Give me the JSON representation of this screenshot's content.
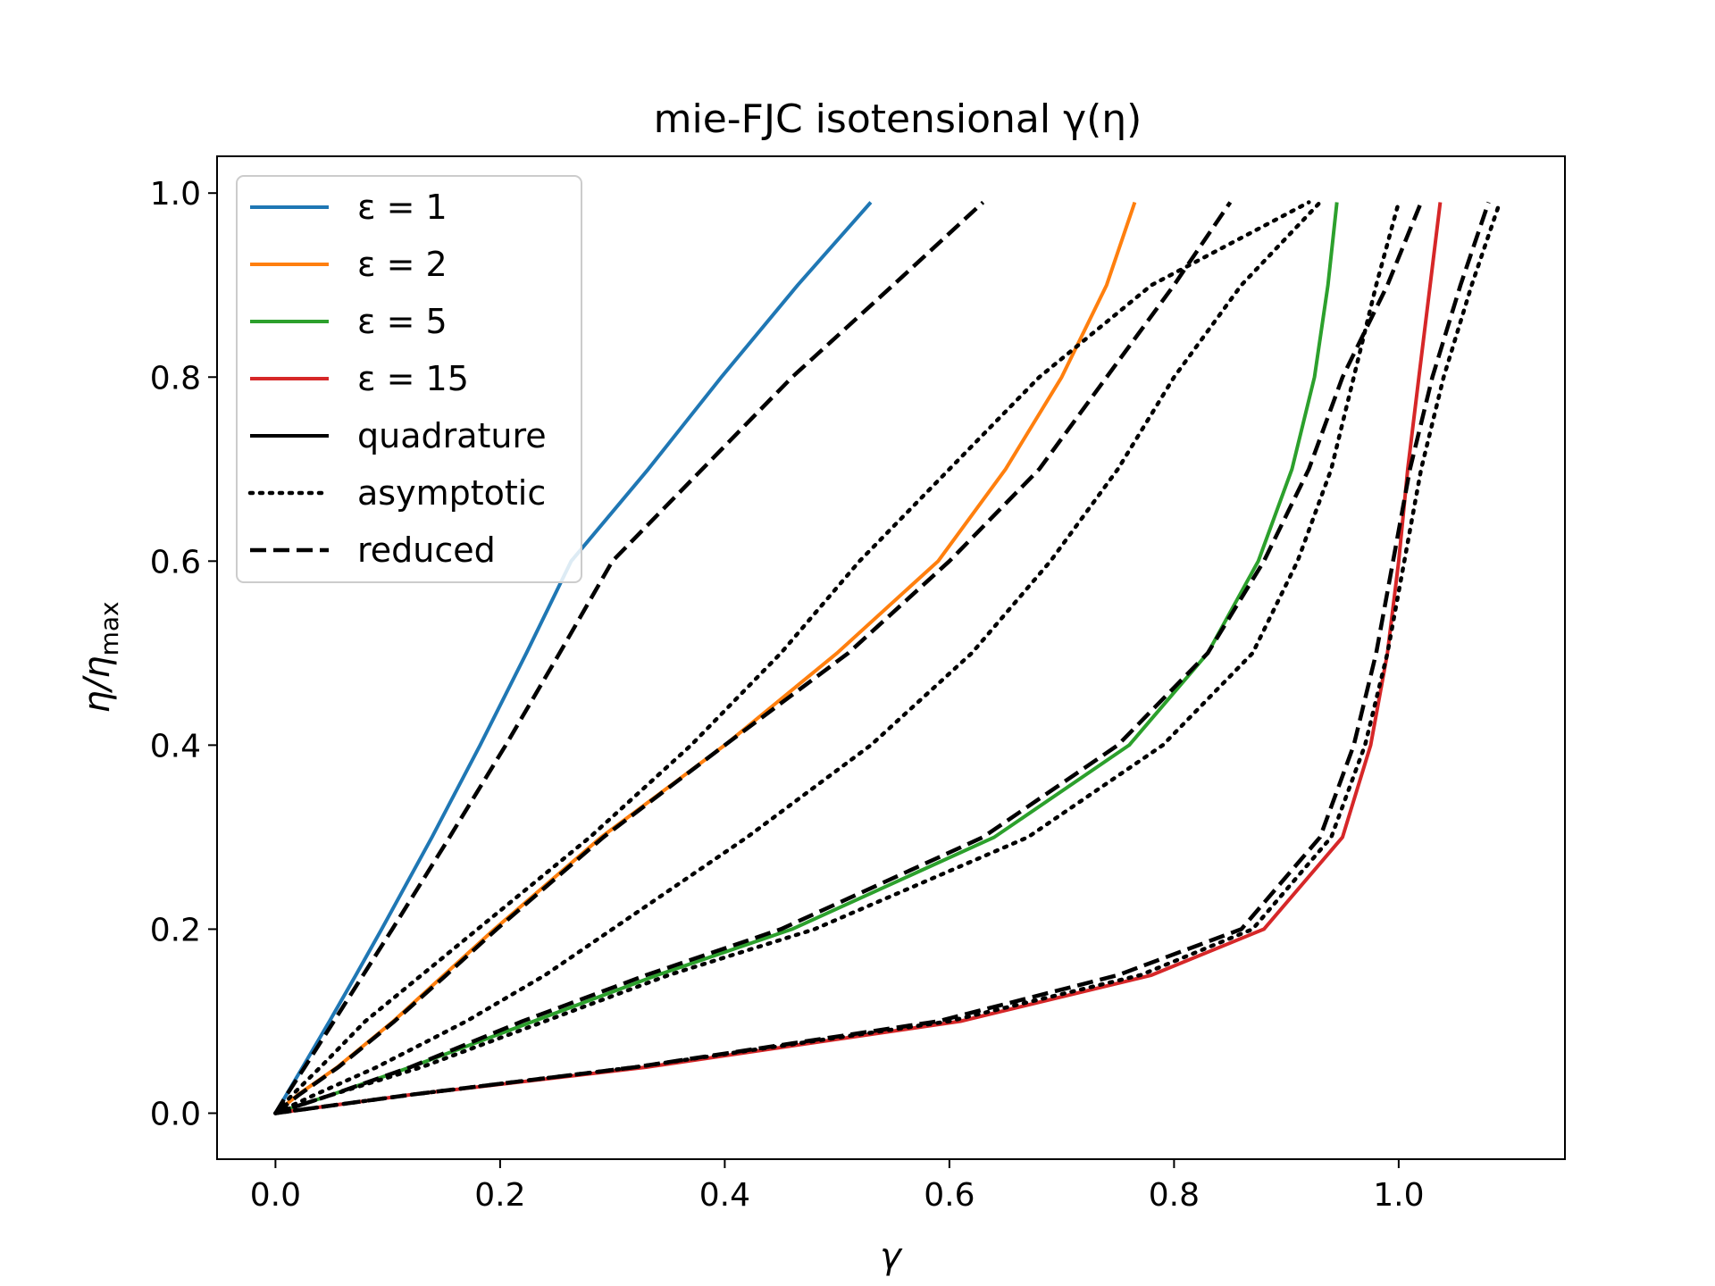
{
  "chart_data": {
    "type": "line",
    "title": "mie-FJC isotensional γ(η)",
    "xlabel": "γ",
    "ylabel": "η/η",
    "ylabel_sub": "max",
    "xlim": [
      -0.052,
      1.148
    ],
    "ylim": [
      -0.05,
      1.04
    ],
    "xticks": [
      "0.0",
      "0.2",
      "0.4",
      "0.6",
      "0.8",
      "1.0"
    ],
    "xtick_values": [
      0.0,
      0.2,
      0.4,
      0.6,
      0.8,
      1.0
    ],
    "yticks": [
      "0.0",
      "0.2",
      "0.4",
      "0.6",
      "0.8",
      "1.0"
    ],
    "ytick_values": [
      0.0,
      0.2,
      0.4,
      0.6,
      0.8,
      1.0
    ],
    "grid": false,
    "legend_position": "upper-left",
    "colors": {
      "eps1": "#1f77b4",
      "eps2": "#ff7f0e",
      "eps5": "#2ca02c",
      "eps15": "#d62728",
      "black": "#000000"
    },
    "legend": [
      {
        "label": "ε = 1",
        "color": "#1f77b4",
        "style": "solid"
      },
      {
        "label": "ε = 2",
        "color": "#ff7f0e",
        "style": "solid"
      },
      {
        "label": "ε = 5",
        "color": "#2ca02c",
        "style": "solid"
      },
      {
        "label": "ε = 15",
        "color": "#d62728",
        "style": "solid"
      },
      {
        "label": "quadrature",
        "color": "#000000",
        "style": "solid"
      },
      {
        "label": "asymptotic",
        "color": "#000000",
        "style": "dotted"
      },
      {
        "label": "reduced",
        "color": "#000000",
        "style": "dashed"
      }
    ],
    "y": [
      0.0,
      0.02,
      0.05,
      0.1,
      0.15,
      0.2,
      0.3,
      0.4,
      0.5,
      0.6,
      0.7,
      0.8,
      0.9,
      0.99
    ],
    "series": [
      {
        "group": "eps1",
        "method": "quadrature",
        "color": "#1f77b4",
        "style": "solid",
        "x": [
          0.0,
          0.0097,
          0.0242,
          0.0481,
          0.0716,
          0.0946,
          0.1393,
          0.1822,
          0.2234,
          0.2633,
          0.3319,
          0.397,
          0.465,
          0.53
        ]
      },
      {
        "group": "eps1",
        "method": "asymptotic",
        "color": "#000000",
        "style": "dotted",
        "x": [
          0.0,
          0.015,
          0.04,
          0.08,
          0.13,
          0.18,
          0.28,
          0.37,
          0.45,
          0.52,
          0.6,
          0.68,
          0.78,
          0.92
        ]
      },
      {
        "group": "eps1",
        "method": "reduced",
        "color": "#000000",
        "style": "dashed",
        "x": [
          0.0,
          0.01,
          0.026,
          0.052,
          0.078,
          0.104,
          0.155,
          0.205,
          0.253,
          0.3,
          0.38,
          0.46,
          0.55,
          0.63
        ]
      },
      {
        "group": "eps2",
        "method": "quadrature",
        "color": "#ff7f0e",
        "style": "solid",
        "x": [
          0.0,
          0.02,
          0.055,
          0.105,
          0.15,
          0.195,
          0.29,
          0.4,
          0.5,
          0.59,
          0.65,
          0.7,
          0.74,
          0.765
        ]
      },
      {
        "group": "eps2",
        "method": "asymptotic",
        "color": "#000000",
        "style": "dotted",
        "x": [
          0.0,
          0.035,
          0.09,
          0.17,
          0.24,
          0.3,
          0.42,
          0.53,
          0.62,
          0.69,
          0.75,
          0.8,
          0.86,
          0.93
        ]
      },
      {
        "group": "eps2",
        "method": "reduced",
        "color": "#000000",
        "style": "dashed",
        "x": [
          0.0,
          0.021,
          0.056,
          0.106,
          0.152,
          0.197,
          0.292,
          0.4,
          0.51,
          0.6,
          0.68,
          0.74,
          0.8,
          0.85
        ]
      },
      {
        "group": "eps5",
        "method": "quadrature",
        "color": "#2ca02c",
        "style": "solid",
        "x": [
          0.0,
          0.05,
          0.12,
          0.23,
          0.34,
          0.46,
          0.64,
          0.76,
          0.83,
          0.875,
          0.905,
          0.925,
          0.937,
          0.945
        ]
      },
      {
        "group": "eps5",
        "method": "asymptotic",
        "color": "#000000",
        "style": "dotted",
        "x": [
          0.0,
          0.05,
          0.13,
          0.24,
          0.35,
          0.48,
          0.67,
          0.79,
          0.87,
          0.91,
          0.94,
          0.96,
          0.98,
          1.0
        ]
      },
      {
        "group": "eps5",
        "method": "reduced",
        "color": "#000000",
        "style": "dashed",
        "x": [
          0.0,
          0.05,
          0.12,
          0.22,
          0.33,
          0.45,
          0.63,
          0.75,
          0.83,
          0.88,
          0.92,
          0.95,
          0.99,
          1.02
        ]
      },
      {
        "group": "eps15",
        "method": "quadrature",
        "color": "#d62728",
        "style": "solid",
        "x": [
          0.0,
          0.12,
          0.33,
          0.61,
          0.78,
          0.88,
          0.95,
          0.975,
          0.99,
          1.0,
          1.008,
          1.018,
          1.028,
          1.037
        ]
      },
      {
        "group": "eps15",
        "method": "asymptotic",
        "color": "#000000",
        "style": "dotted",
        "x": [
          0.0,
          0.12,
          0.32,
          0.6,
          0.77,
          0.87,
          0.94,
          0.97,
          0.99,
          1.005,
          1.02,
          1.04,
          1.065,
          1.09
        ]
      },
      {
        "group": "eps15",
        "method": "reduced",
        "color": "#000000",
        "style": "dashed",
        "x": [
          0.0,
          0.12,
          0.32,
          0.59,
          0.75,
          0.86,
          0.93,
          0.96,
          0.98,
          0.995,
          1.01,
          1.03,
          1.055,
          1.08
        ]
      }
    ]
  }
}
